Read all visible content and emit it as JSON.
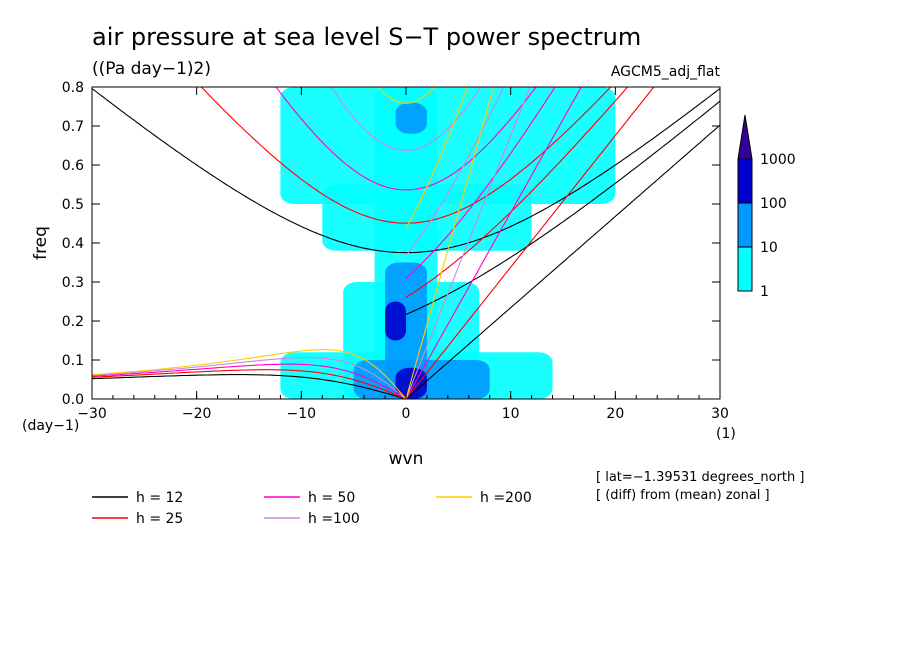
{
  "chart_data": {
    "type": "heatmap",
    "title": "air pressure at sea level S−T power spectrum",
    "units": "((Pa day−1)2)",
    "model": "AGCM5_adj_flat",
    "xlabel": "wvn",
    "ylabel": "freq",
    "x_unit": "(1)",
    "y_unit": "(day−1)",
    "xlim": [
      -30,
      30
    ],
    "ylim": [
      0,
      0.8
    ],
    "x_ticks": [
      "−30",
      "−20",
      "−10",
      "0",
      "10",
      "20",
      "30"
    ],
    "y_ticks": [
      "0.0",
      "0.1",
      "0.2",
      "0.3",
      "0.4",
      "0.5",
      "0.6",
      "0.7",
      "0.8"
    ],
    "colorbar": {
      "levels": [
        "1",
        "10",
        "100",
        "1000"
      ],
      "colors": [
        "#00ffff",
        "#0099ff",
        "#0000cc",
        "#330099"
      ]
    },
    "annotations": [
      "[ lat=−1.39531 degrees_north ]",
      "[ (diff) from (mean) zonal ]"
    ],
    "dispersion_curves": [
      {
        "label": "h = 12",
        "h": 12,
        "color": "#000000"
      },
      {
        "label": "h = 25",
        "h": 25,
        "color": "#ff0000"
      },
      {
        "label": "h = 50",
        "h": 50,
        "color": "#ff00cc"
      },
      {
        "label": "h =100",
        "h": 100,
        "color": "#cc88dd"
      },
      {
        "label": "h =200",
        "h": 200,
        "color": "#ffcc00"
      }
    ],
    "power_regions": [
      {
        "x": [
          -3,
          3
        ],
        "y": [
          0.0,
          0.8
        ],
        "level": 1
      },
      {
        "x": [
          -6,
          7
        ],
        "y": [
          0.0,
          0.3
        ],
        "level": 1
      },
      {
        "x": [
          -12,
          14
        ],
        "y": [
          0.0,
          0.12
        ],
        "level": 1
      },
      {
        "x": [
          -12,
          20
        ],
        "y": [
          0.5,
          0.8
        ],
        "level": 1
      },
      {
        "x": [
          -8,
          12
        ],
        "y": [
          0.38,
          0.55
        ],
        "level": 1
      },
      {
        "x": [
          -2,
          2
        ],
        "y": [
          0.0,
          0.35
        ],
        "level": 10
      },
      {
        "x": [
          -5,
          8
        ],
        "y": [
          0.0,
          0.1
        ],
        "level": 10
      },
      {
        "x": [
          -1,
          2
        ],
        "y": [
          0.68,
          0.76
        ],
        "level": 10
      },
      {
        "x": [
          -1,
          2
        ],
        "y": [
          0.0,
          0.08
        ],
        "level": 100
      },
      {
        "x": [
          -2,
          0
        ],
        "y": [
          0.15,
          0.25
        ],
        "level": 100
      }
    ]
  }
}
